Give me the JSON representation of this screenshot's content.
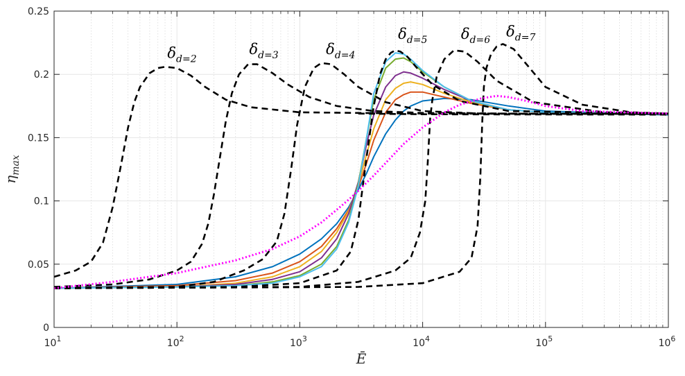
{
  "chart_data": {
    "type": "line",
    "x_scale": "log",
    "xlim": [
      10,
      1000000
    ],
    "ylim": [
      0,
      0.25
    ],
    "xlabel": "Ē",
    "ylabel": "η_max",
    "grid": true,
    "yticks": [
      "0",
      "0.05",
      "0.1",
      "0.15",
      "0.2",
      "0.25"
    ],
    "xticks": [
      {
        "base": "10",
        "exp": "1"
      },
      {
        "base": "10",
        "exp": "2"
      },
      {
        "base": "10",
        "exp": "3"
      },
      {
        "base": "10",
        "exp": "4"
      },
      {
        "base": "10",
        "exp": "5"
      },
      {
        "base": "10",
        "exp": "6"
      }
    ],
    "annotations": [
      {
        "sym": "δ",
        "sub": "d=2",
        "x": 110,
        "y": 0.213
      },
      {
        "sym": "δ",
        "sub": "d=3",
        "x": 510,
        "y": 0.216
      },
      {
        "sym": "δ",
        "sub": "d=4",
        "x": 2150,
        "y": 0.216
      },
      {
        "sym": "δ",
        "sub": "d=5",
        "x": 8300,
        "y": 0.228
      },
      {
        "sym": "δ",
        "sub": "d=6",
        "x": 27000,
        "y": 0.228
      },
      {
        "sym": "δ",
        "sub": "d=7",
        "x": 63000,
        "y": 0.23
      }
    ],
    "series": [
      {
        "name": "δd=2",
        "style": "dashed",
        "color": "#000000",
        "x": [
          10,
          15,
          20,
          25,
          30,
          35,
          40,
          45,
          50,
          60,
          70,
          80,
          100,
          130,
          170,
          250,
          400,
          1000,
          3000,
          10000,
          100000,
          1000000
        ],
        "y": [
          0.04,
          0.045,
          0.052,
          0.067,
          0.095,
          0.128,
          0.158,
          0.178,
          0.19,
          0.201,
          0.205,
          0.206,
          0.205,
          0.199,
          0.19,
          0.18,
          0.174,
          0.17,
          0.1695,
          0.169,
          0.1688,
          0.1688
        ]
      },
      {
        "name": "δd=3",
        "style": "dashed",
        "color": "#000000",
        "x": [
          10,
          30,
          60,
          100,
          130,
          160,
          180,
          200,
          220,
          250,
          280,
          320,
          380,
          450,
          600,
          800,
          1200,
          2000,
          4000,
          10000,
          100000,
          1000000
        ],
        "y": [
          0.032,
          0.034,
          0.038,
          0.045,
          0.052,
          0.066,
          0.082,
          0.105,
          0.13,
          0.163,
          0.185,
          0.2,
          0.208,
          0.208,
          0.201,
          0.192,
          0.182,
          0.175,
          0.171,
          0.1695,
          0.1688,
          0.1688
        ]
      },
      {
        "name": "δd=4",
        "style": "dashed",
        "color": "#000000",
        "x": [
          10,
          100,
          200,
          350,
          500,
          650,
          750,
          850,
          950,
          1100,
          1300,
          1500,
          1800,
          2300,
          3000,
          5000,
          10000,
          30000,
          1000000
        ],
        "y": [
          0.031,
          0.032,
          0.036,
          0.045,
          0.054,
          0.068,
          0.09,
          0.125,
          0.16,
          0.19,
          0.205,
          0.209,
          0.208,
          0.2,
          0.19,
          0.178,
          0.171,
          0.169,
          0.1688
        ]
      },
      {
        "name": "δd=5",
        "style": "dashed",
        "color": "#000000",
        "x": [
          10,
          300,
          1000,
          2000,
          2600,
          3000,
          3500,
          4000,
          4500,
          5000,
          5500,
          6000,
          6600,
          7500,
          9000,
          12000,
          20000,
          50000,
          1000000
        ],
        "y": [
          0.031,
          0.032,
          0.035,
          0.045,
          0.06,
          0.085,
          0.135,
          0.175,
          0.2,
          0.212,
          0.217,
          0.219,
          0.218,
          0.214,
          0.205,
          0.192,
          0.179,
          0.171,
          0.169
        ]
      },
      {
        "name": "δd=6",
        "style": "dashed",
        "color": "#000000",
        "x": [
          10,
          1000,
          3000,
          6000,
          8000,
          9500,
          10500,
          11000,
          11500,
          12000,
          13000,
          15000,
          18000,
          22000,
          28000,
          40000,
          80000,
          300000,
          1000000
        ],
        "y": [
          0.031,
          0.032,
          0.036,
          0.045,
          0.055,
          0.075,
          0.1,
          0.13,
          0.165,
          0.18,
          0.198,
          0.212,
          0.219,
          0.218,
          0.21,
          0.195,
          0.178,
          0.17,
          0.169
        ]
      },
      {
        "name": "δd=7",
        "style": "dashed",
        "color": "#000000",
        "x": [
          10,
          3000,
          10000,
          20000,
          25000,
          28000,
          29500,
          30500,
          31500,
          33000,
          36000,
          40000,
          45000,
          55000,
          70000,
          100000,
          200000,
          500000,
          1000000
        ],
        "y": [
          0.031,
          0.032,
          0.035,
          0.044,
          0.055,
          0.08,
          0.12,
          0.16,
          0.19,
          0.205,
          0.216,
          0.222,
          0.224,
          0.22,
          0.208,
          0.19,
          0.176,
          0.17,
          0.169
        ]
      },
      {
        "name": "plateau",
        "style": "dashed",
        "color": "#000000",
        "x": [
          3000,
          10000,
          100000,
          1000000
        ],
        "y": [
          0.169,
          0.1685,
          0.1683,
          0.1682
        ]
      },
      {
        "name": "curve-blue",
        "style": "solid",
        "color": "#0072bd",
        "x": [
          10,
          100,
          300,
          600,
          1000,
          1500,
          2000,
          2500,
          3000,
          3500,
          4000,
          5000,
          6000,
          7000,
          8000,
          10000,
          15000,
          25000,
          50000,
          100000,
          1000000
        ],
        "y": [
          0.031,
          0.034,
          0.04,
          0.048,
          0.058,
          0.07,
          0.082,
          0.095,
          0.109,
          0.122,
          0.135,
          0.153,
          0.164,
          0.171,
          0.175,
          0.179,
          0.181,
          0.18,
          0.175,
          0.171,
          0.168
        ]
      },
      {
        "name": "curve-orange",
        "style": "solid",
        "color": "#d95319",
        "x": [
          10,
          100,
          300,
          600,
          1000,
          1500,
          2000,
          2500,
          3000,
          3500,
          4000,
          5000,
          6000,
          7000,
          8000,
          10000,
          15000,
          25000,
          50000,
          100000,
          1000000
        ],
        "y": [
          0.031,
          0.033,
          0.037,
          0.043,
          0.052,
          0.064,
          0.078,
          0.093,
          0.111,
          0.13,
          0.148,
          0.17,
          0.18,
          0.184,
          0.186,
          0.186,
          0.182,
          0.177,
          0.172,
          0.17,
          0.168
        ]
      },
      {
        "name": "curve-yellow",
        "style": "solid",
        "color": "#edb120",
        "x": [
          10,
          100,
          300,
          600,
          1000,
          1500,
          2000,
          2500,
          3000,
          3500,
          4000,
          5000,
          6000,
          7000,
          8000,
          10000,
          15000,
          25000,
          50000,
          100000,
          1000000
        ],
        "y": [
          0.031,
          0.032,
          0.035,
          0.04,
          0.048,
          0.06,
          0.075,
          0.092,
          0.113,
          0.137,
          0.157,
          0.18,
          0.189,
          0.193,
          0.194,
          0.192,
          0.185,
          0.178,
          0.172,
          0.17,
          0.168
        ]
      },
      {
        "name": "curve-purple",
        "style": "solid",
        "color": "#7e2f8e",
        "x": [
          10,
          100,
          300,
          600,
          1000,
          1500,
          2000,
          2500,
          3000,
          3500,
          4000,
          5000,
          6000,
          7000,
          8000,
          10000,
          15000,
          25000,
          50000,
          100000,
          1000000
        ],
        "y": [
          0.031,
          0.032,
          0.034,
          0.038,
          0.044,
          0.055,
          0.07,
          0.09,
          0.115,
          0.145,
          0.168,
          0.19,
          0.199,
          0.202,
          0.201,
          0.197,
          0.188,
          0.179,
          0.172,
          0.17,
          0.168
        ]
      },
      {
        "name": "curve-green",
        "style": "solid",
        "color": "#77ac30",
        "x": [
          10,
          100,
          300,
          600,
          1000,
          1500,
          2000,
          2500,
          3000,
          3500,
          4000,
          5000,
          6000,
          7000,
          8000,
          10000,
          15000,
          25000,
          50000,
          100000,
          1000000
        ],
        "y": [
          0.031,
          0.032,
          0.033,
          0.036,
          0.041,
          0.05,
          0.064,
          0.085,
          0.114,
          0.15,
          0.18,
          0.205,
          0.212,
          0.213,
          0.21,
          0.202,
          0.19,
          0.179,
          0.172,
          0.17,
          0.168
        ]
      },
      {
        "name": "curve-cyan",
        "style": "solid",
        "color": "#4dbeee",
        "x": [
          10,
          100,
          300,
          600,
          1000,
          1500,
          2000,
          2500,
          3000,
          3500,
          4000,
          5000,
          6000,
          7000,
          8000,
          10000,
          15000,
          25000,
          50000,
          100000,
          1000000
        ],
        "y": [
          0.031,
          0.032,
          0.033,
          0.035,
          0.04,
          0.048,
          0.062,
          0.083,
          0.112,
          0.15,
          0.185,
          0.21,
          0.217,
          0.216,
          0.212,
          0.203,
          0.19,
          0.179,
          0.172,
          0.17,
          0.168
        ]
      },
      {
        "name": "curve-magenta-dotted",
        "style": "dotted",
        "color": "#ff00ff",
        "x": [
          10,
          30,
          100,
          300,
          600,
          1000,
          1500,
          2000,
          2500,
          3000,
          4000,
          5000,
          7000,
          10000,
          15000,
          20000,
          30000,
          40000,
          50000,
          70000,
          100000,
          200000,
          1000000
        ],
        "y": [
          0.031,
          0.036,
          0.043,
          0.053,
          0.062,
          0.072,
          0.083,
          0.093,
          0.101,
          0.108,
          0.12,
          0.13,
          0.145,
          0.158,
          0.17,
          0.176,
          0.181,
          0.183,
          0.182,
          0.179,
          0.175,
          0.171,
          0.169
        ]
      }
    ]
  }
}
